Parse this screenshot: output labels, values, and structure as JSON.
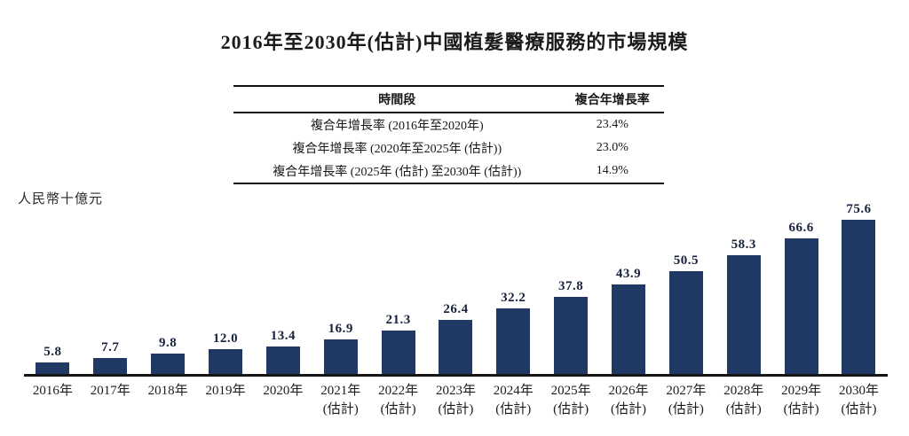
{
  "page": {
    "background": "#ffffff",
    "title": "2016年至2030年(估計)中國植髮醫療服務的市場規模"
  },
  "cagr_table": {
    "headers": {
      "period": "時間段",
      "cagr": "複合年增長率"
    },
    "rows": [
      {
        "period": "複合年增長率 (2016年至2020年)",
        "cagr": "23.4%"
      },
      {
        "period": "複合年增長率 (2020年至2025年 (估計))",
        "cagr": "23.0%"
      },
      {
        "period": "複合年增長率 (2025年 (估計) 至2030年 (估計))",
        "cagr": "14.9%"
      }
    ]
  },
  "chart_data": {
    "type": "bar",
    "title": "2016年至2030年(估計)中國植髮醫療服務的市場規模",
    "ylabel": "人民幣十億元",
    "xlabel": "",
    "categories": [
      "2016年",
      "2017年",
      "2018年",
      "2019年",
      "2020年",
      "2021年(估計)",
      "2022年(估計)",
      "2023年(估計)",
      "2024年(估計)",
      "2025年(估計)",
      "2026年(估計)",
      "2027年(估計)",
      "2028年(估計)",
      "2029年(估計)",
      "2030年(估計)"
    ],
    "values": [
      5.8,
      7.7,
      9.8,
      12.0,
      13.4,
      16.9,
      21.3,
      26.4,
      32.2,
      37.8,
      43.9,
      50.5,
      58.3,
      66.6,
      75.6
    ],
    "ylim": [
      0,
      80
    ],
    "grid": false,
    "legend": false,
    "bar_color": "#1f3864",
    "axis_color": "#161616",
    "value_label_color": "#18223d"
  }
}
